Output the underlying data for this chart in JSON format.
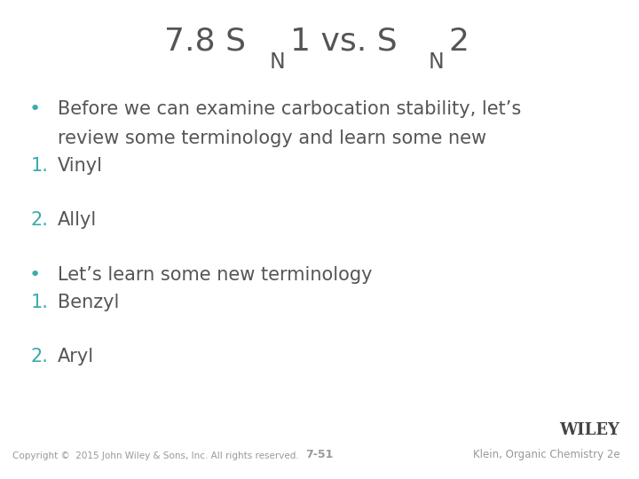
{
  "background_color": "#ffffff",
  "title_color": "#555555",
  "teal_color": "#3aabab",
  "title_fontsize": 26,
  "sub_fontsize": 17,
  "body_fontsize": 15,
  "bullet_fontsize": 15,
  "footer_left": "Copyright ©  2015 John Wiley & Sons, Inc. All rights reserved.",
  "footer_center": "7-51",
  "footer_right": "Klein, Organic Chemistry 2e",
  "wiley_text": "WILEY",
  "footer_color": "#999999",
  "footer_dark": "#444444"
}
